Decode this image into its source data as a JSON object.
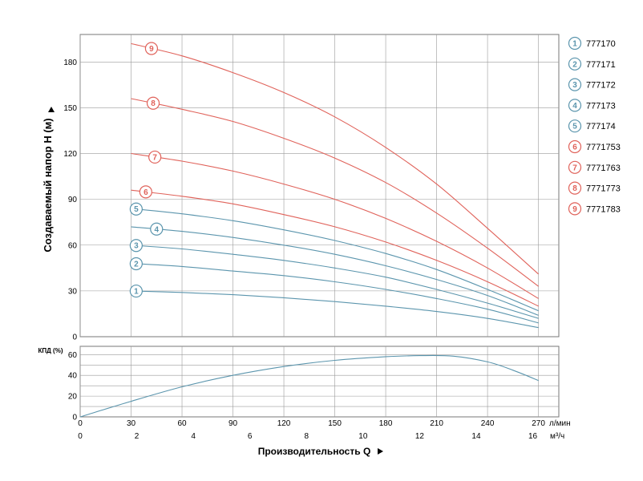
{
  "chart_data": [
    {
      "type": "line",
      "ylabel": "Создаваемый напор H (м)",
      "ylim": [
        0,
        198
      ],
      "yticks": [
        0,
        30,
        60,
        90,
        120,
        150,
        180
      ],
      "xlim": [
        0,
        282
      ],
      "grid": true,
      "legend_position": "right",
      "colors": {
        "blue": "#5b95ad",
        "red": "#e0625a"
      },
      "series": [
        {
          "name": "777170",
          "marker": "1",
          "color": "blue",
          "x": [
            30,
            60,
            90,
            120,
            150,
            180,
            210,
            240,
            270
          ],
          "y": [
            30,
            29,
            27.5,
            25.5,
            23,
            20,
            16.5,
            12,
            6
          ]
        },
        {
          "name": "777171",
          "marker": "2",
          "color": "blue",
          "x": [
            30,
            60,
            90,
            120,
            150,
            180,
            210,
            240,
            270
          ],
          "y": [
            48,
            46,
            43,
            40,
            36,
            31,
            25,
            18,
            9
          ]
        },
        {
          "name": "777172",
          "marker": "3",
          "color": "blue",
          "x": [
            30,
            60,
            90,
            120,
            150,
            180,
            210,
            240,
            270
          ],
          "y": [
            60,
            57.5,
            54,
            50,
            45,
            39,
            31,
            22,
            12
          ]
        },
        {
          "name": "777173",
          "marker": "4",
          "color": "blue",
          "x": [
            30,
            60,
            90,
            120,
            150,
            180,
            210,
            240,
            270
          ],
          "y": [
            72,
            69,
            65,
            60,
            54,
            46.5,
            37.5,
            27,
            14
          ]
        },
        {
          "name": "777174",
          "marker": "5",
          "color": "blue",
          "x": [
            30,
            60,
            90,
            120,
            150,
            180,
            210,
            240,
            270
          ],
          "y": [
            84,
            80.5,
            76,
            70,
            63,
            54.5,
            44,
            31,
            17
          ]
        },
        {
          "name": "7771753",
          "marker": "6",
          "color": "red",
          "x": [
            30,
            60,
            90,
            120,
            150,
            180,
            210,
            240,
            270
          ],
          "y": [
            96,
            92,
            87,
            80,
            72,
            62,
            50,
            36,
            20
          ]
        },
        {
          "name": "7771763",
          "marker": "7",
          "color": "red",
          "x": [
            30,
            60,
            90,
            120,
            150,
            180,
            210,
            240,
            270
          ],
          "y": [
            120,
            115,
            108.5,
            100,
            90,
            77.5,
            62.5,
            45,
            25
          ]
        },
        {
          "name": "7771773",
          "marker": "8",
          "color": "red",
          "x": [
            30,
            60,
            90,
            120,
            150,
            180,
            210,
            240,
            270
          ],
          "y": [
            156,
            149,
            141,
            130,
            117,
            101,
            81,
            58,
            33
          ]
        },
        {
          "name": "7771783",
          "marker": "9",
          "color": "red",
          "x": [
            30,
            60,
            90,
            120,
            150,
            180,
            210,
            240,
            270
          ],
          "y": [
            192,
            184,
            173,
            160,
            144,
            124,
            100,
            71,
            41
          ]
        }
      ]
    },
    {
      "type": "line",
      "ylabel": "КПД (%)",
      "ylim": [
        0,
        68
      ],
      "yticks": [
        0,
        20,
        40,
        60
      ],
      "xlabel": "Производительность Q",
      "xlim": [
        0,
        282
      ],
      "xticks_lmin": [
        0,
        30,
        60,
        90,
        120,
        150,
        180,
        210,
        240,
        270
      ],
      "xunit_lmin": "л/мин",
      "xticks_m3h": [
        0,
        2,
        4,
        6,
        8,
        10,
        12,
        14,
        16
      ],
      "xunit_m3h": "м³/ч",
      "grid": true,
      "color": "blue",
      "series": [
        {
          "x": [
            0,
            30,
            60,
            90,
            120,
            150,
            180,
            200,
            220,
            240,
            255,
            270
          ],
          "y": [
            0,
            15,
            29,
            40,
            48.5,
            54.5,
            58,
            59,
            58.5,
            53,
            45,
            35
          ]
        }
      ]
    }
  ]
}
